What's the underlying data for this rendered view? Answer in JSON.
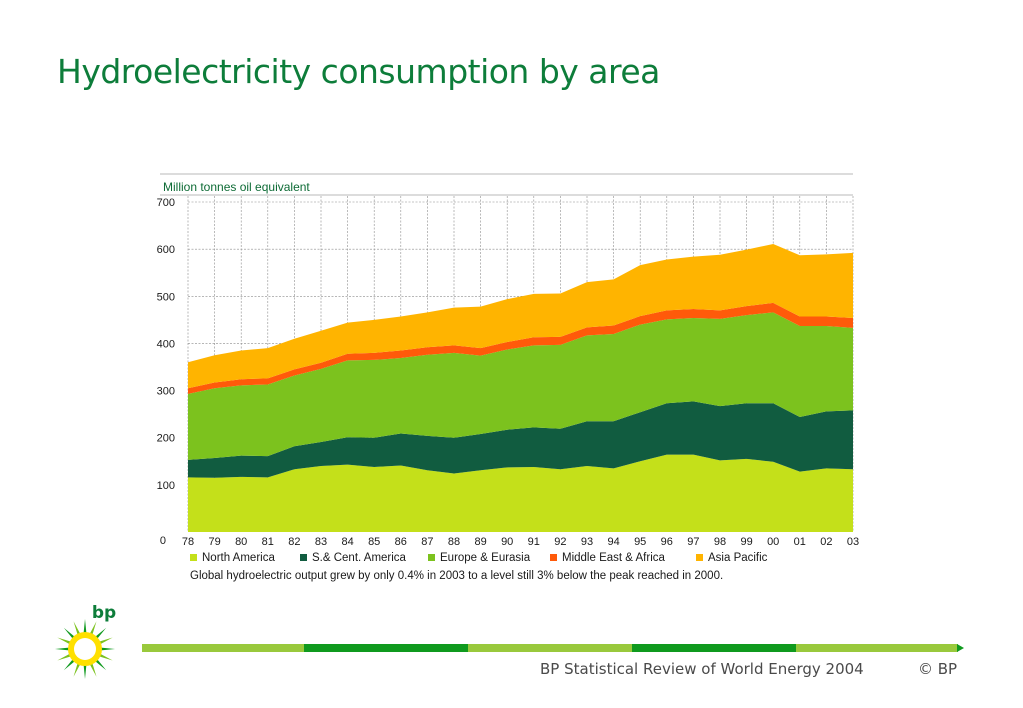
{
  "slide": {
    "title": "Hydroelectricity consumption by area",
    "footer_source": "BP Statistical Review of World Energy 2004",
    "footer_copyright": "© BP",
    "logo_text": "bp"
  },
  "colors": {
    "north_america": "#c4e01a",
    "sc_america": "#115c40",
    "europe_eurasia": "#7cc21e",
    "middle_east_africa": "#ff5a0a",
    "asia_pacific": "#ffb400",
    "title": "#0d7d3a",
    "footer_light": "#99c93c",
    "footer_dark": "#0f9a1e"
  },
  "chart_data": {
    "type": "area",
    "stacked": true,
    "ylabel": "Million tonnes oil equivalent",
    "ylim": [
      0,
      700
    ],
    "yticks": [
      0,
      100,
      200,
      300,
      400,
      500,
      600,
      700
    ],
    "categories": [
      "78",
      "79",
      "80",
      "81",
      "82",
      "83",
      "84",
      "85",
      "86",
      "87",
      "88",
      "89",
      "90",
      "91",
      "92",
      "93",
      "94",
      "95",
      "96",
      "97",
      "98",
      "99",
      "00",
      "01",
      "02",
      "03"
    ],
    "grid": true,
    "legend_position": "bottom",
    "series": [
      {
        "name": "North America",
        "color_key": "north_america",
        "values": [
          116,
          115,
          117,
          116,
          133,
          140,
          143,
          138,
          141,
          131,
          124,
          131,
          137,
          138,
          133,
          140,
          135,
          150,
          164,
          164,
          152,
          155,
          149,
          128,
          135,
          133
        ]
      },
      {
        "name": "S.& Cent. America",
        "color_key": "sc_america",
        "values": [
          37,
          42,
          45,
          45,
          49,
          51,
          58,
          62,
          68,
          73,
          76,
          77,
          80,
          84,
          86,
          95,
          100,
          104,
          109,
          113,
          115,
          118,
          124,
          116,
          121,
          125
        ]
      },
      {
        "name": "Europe & Eurasia",
        "color_key": "europe_eurasia",
        "values": [
          140,
          148,
          149,
          152,
          150,
          155,
          163,
          165,
          160,
          172,
          180,
          166,
          170,
          174,
          178,
          182,
          185,
          186,
          178,
          177,
          185,
          187,
          193,
          193,
          181,
          175
        ]
      },
      {
        "name": "Middle East & Africa",
        "color_key": "middle_east_africa",
        "values": [
          12,
          12,
          13,
          13,
          13,
          13,
          14,
          15,
          16,
          16,
          16,
          16,
          16,
          17,
          17,
          17,
          18,
          18,
          19,
          19,
          18,
          19,
          20,
          20,
          20,
          21
        ]
      },
      {
        "name": "Asia Pacific",
        "color_key": "asia_pacific",
        "values": [
          55,
          58,
          61,
          64,
          65,
          68,
          66,
          70,
          72,
          74,
          80,
          88,
          91,
          92,
          92,
          96,
          98,
          108,
          108,
          111,
          118,
          120,
          125,
          130,
          132,
          138
        ]
      }
    ],
    "note": "Global hydroelectric output grew by only 0.4% in 2003 to a level still 3% below the peak reached in 2000."
  }
}
